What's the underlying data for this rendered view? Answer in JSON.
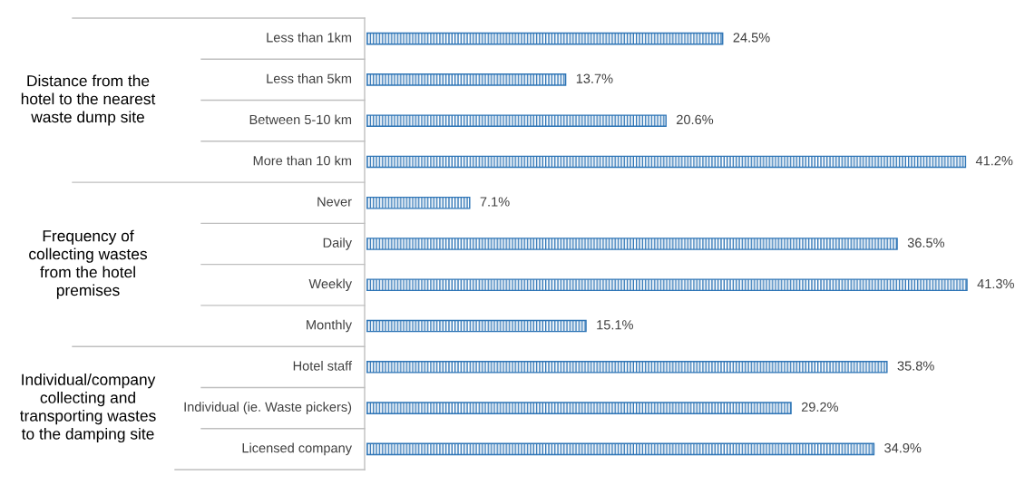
{
  "chart_data": {
    "type": "bar",
    "orientation": "horizontal",
    "categories": [
      "Less than 1km",
      "Less than 5km",
      "Between 5-10 km",
      "More than 10 km",
      "Never",
      "Daily",
      "Weekly",
      "Monthly",
      "Hotel staff",
      "Individual (ie. Waste pickers)",
      "Licensed company"
    ],
    "values": [
      24.5,
      13.7,
      20.6,
      41.2,
      7.1,
      36.5,
      41.3,
      15.1,
      35.8,
      29.2,
      34.9
    ],
    "value_labels": [
      "24.5%",
      "13.7%",
      "20.6%",
      "41.2%",
      "7.1%",
      "36.5%",
      "41.3%",
      "15.1%",
      "35.8%",
      "29.2%",
      "34.9%"
    ],
    "color": "#2e75b6",
    "annotations": [
      "Distance from the\nhotel to the nearest\nwaste dump site",
      "Frequency of\ncollecting wastes\nfrom the hotel\npremises",
      "Individual/company\ncollecting and\ntransporting wastes\nto the damping site"
    ],
    "legend": false
  }
}
